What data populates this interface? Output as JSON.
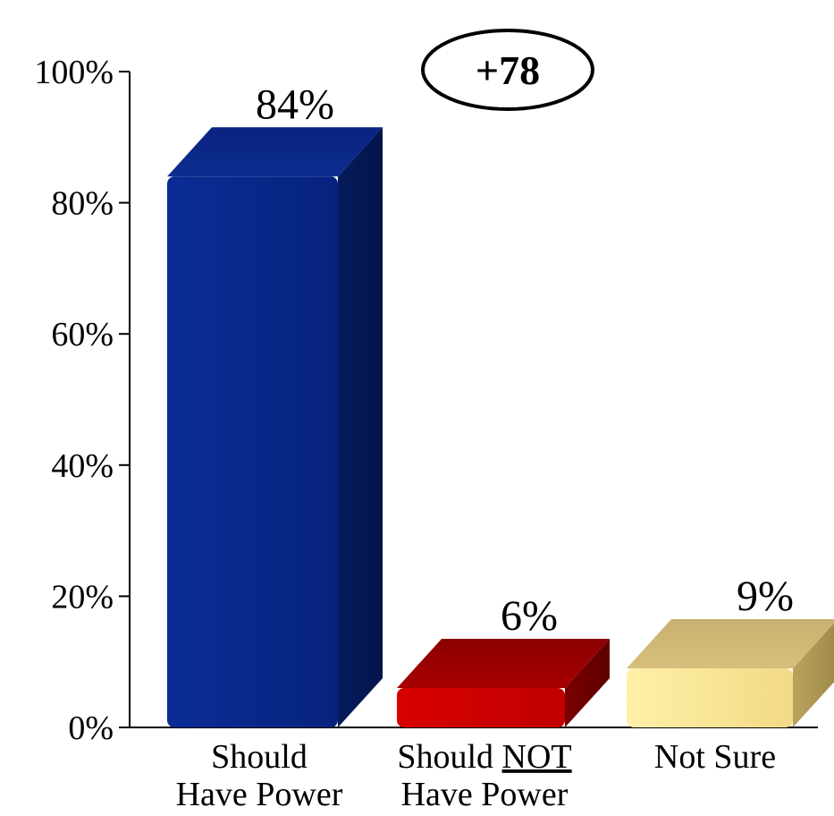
{
  "chart_data": {
    "type": "bar",
    "categories": [
      [
        "Should",
        "Have Power"
      ],
      [
        "Should NOT",
        "Have Power"
      ],
      [
        "Not Sure"
      ]
    ],
    "values": [
      84,
      6,
      9
    ],
    "value_labels": [
      "84%",
      "6%",
      "9%"
    ],
    "ylim": [
      0,
      100
    ],
    "yticks": [
      0,
      20,
      40,
      60,
      80,
      100
    ],
    "ytick_labels": [
      "0%",
      "20%",
      "40%",
      "60%",
      "80%",
      "100%"
    ],
    "annotation": "+78",
    "colors": [
      "#0a2a8c",
      "#c80000",
      "#f2dc8c"
    ],
    "grid": false,
    "legend": "none",
    "title": "",
    "xlabel": "",
    "ylabel": ""
  }
}
